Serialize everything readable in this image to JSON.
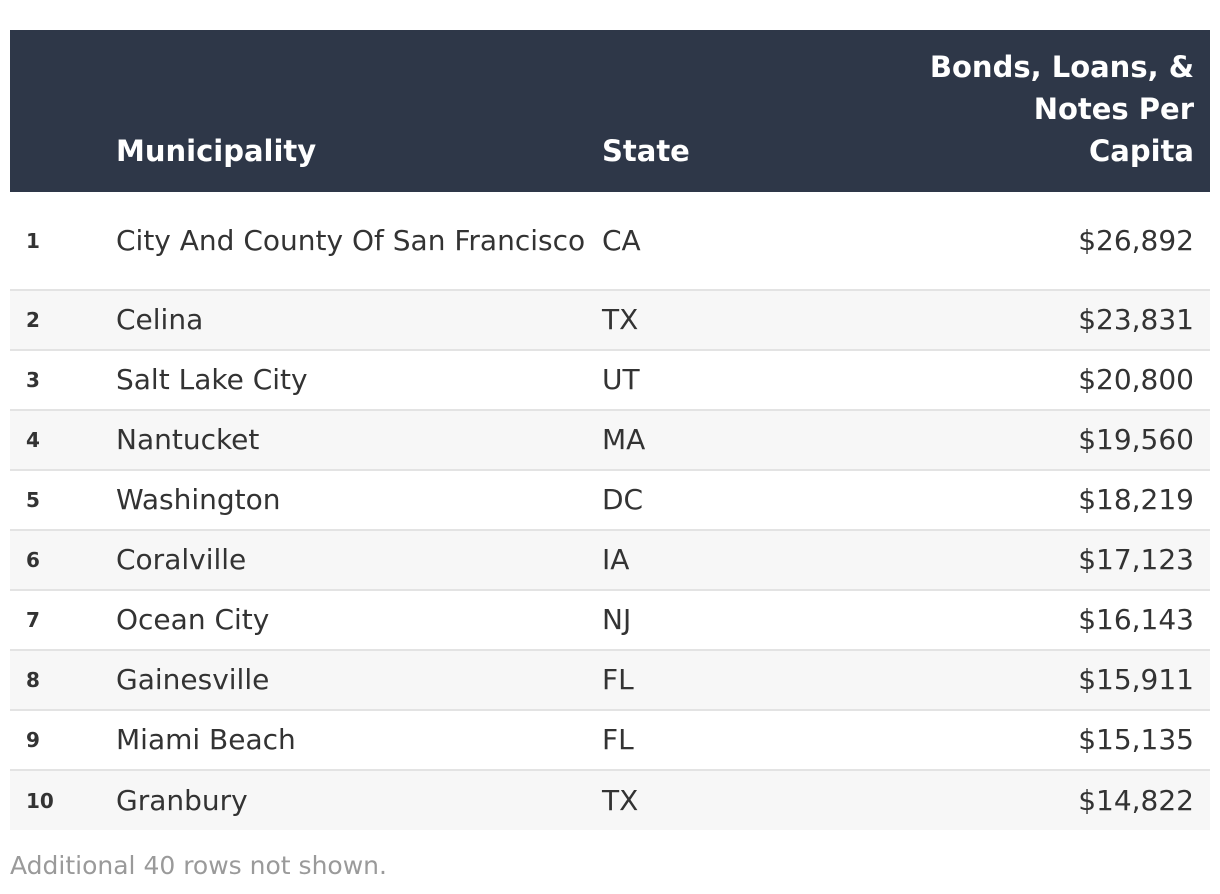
{
  "table": {
    "headers": {
      "rank": "",
      "municipality": "Municipality",
      "state": "State",
      "value_line1": "Bonds, Loans, &",
      "value_line2": "Notes Per",
      "value_line3": "Capita"
    },
    "rows": [
      {
        "rank": "1",
        "municipality": "City And County Of San Francisco",
        "state": "CA",
        "value": "$26,892"
      },
      {
        "rank": "2",
        "municipality": "Celina",
        "state": "TX",
        "value": "$23,831"
      },
      {
        "rank": "3",
        "municipality": "Salt Lake City",
        "state": "UT",
        "value": "$20,800"
      },
      {
        "rank": "4",
        "municipality": "Nantucket",
        "state": "MA",
        "value": "$19,560"
      },
      {
        "rank": "5",
        "municipality": "Washington",
        "state": "DC",
        "value": "$18,219"
      },
      {
        "rank": "6",
        "municipality": "Coralville",
        "state": "IA",
        "value": "$17,123"
      },
      {
        "rank": "7",
        "municipality": "Ocean City",
        "state": "NJ",
        "value": "$16,143"
      },
      {
        "rank": "8",
        "municipality": "Gainesville",
        "state": "FL",
        "value": "$15,911"
      },
      {
        "rank": "9",
        "municipality": "Miami Beach",
        "state": "FL",
        "value": "$15,135"
      },
      {
        "rank": "10",
        "municipality": "Granbury",
        "state": "TX",
        "value": "$14,822"
      }
    ]
  },
  "footnote": "Additional 40 rows not shown.",
  "colors": {
    "header_bg": "#2e3748",
    "header_text": "#ffffff",
    "row_alt_bg": "#f7f7f7",
    "footnote_text": "#9a9a9a"
  }
}
